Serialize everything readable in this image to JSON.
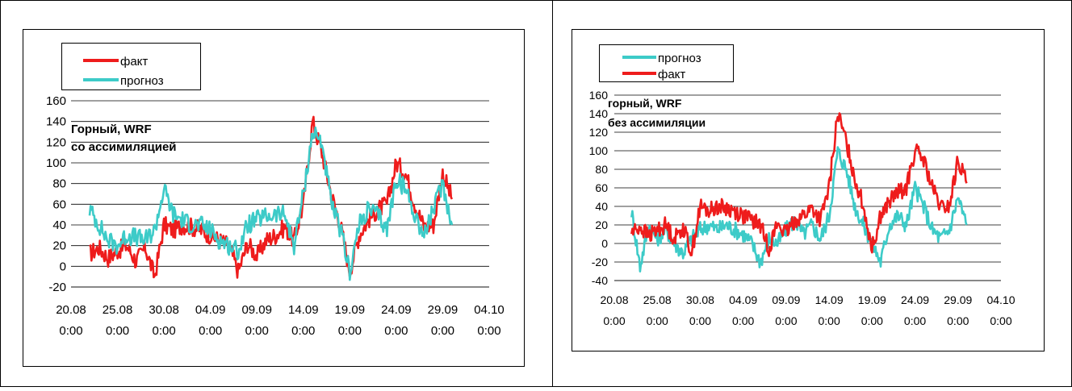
{
  "colors": {
    "fact": "#ee1c1c",
    "forecast": "#3dcbc8",
    "grid": "#000000",
    "frame": "#000000"
  },
  "chart_data": [
    {
      "type": "line",
      "title": "Горный, WRF",
      "subtitle": "со ассимиляцией",
      "legend_placement": "top-left",
      "ylim": [
        -20,
        160
      ],
      "yticks": [
        "-20",
        "0",
        "20",
        "40",
        "60",
        "80",
        "100",
        "120",
        "140",
        "160"
      ],
      "xticks": [
        {
          "date": "20.08",
          "time": "0:00"
        },
        {
          "date": "25.08",
          "time": "0:00"
        },
        {
          "date": "30.08",
          "time": "0:00"
        },
        {
          "date": "04.09",
          "time": "0:00"
        },
        {
          "date": "09.09",
          "time": "0:00"
        },
        {
          "date": "14.09",
          "time": "0:00"
        },
        {
          "date": "19.09",
          "time": "0:00"
        },
        {
          "date": "24.09",
          "time": "0:00"
        },
        {
          "date": "29.09",
          "time": "0:00"
        },
        {
          "date": "04.10",
          "time": "0:00"
        }
      ],
      "xlim": [
        "2021-08-20",
        "2021-10-04"
      ],
      "grid": "horizontal",
      "series": [
        {
          "name": "факт",
          "color": "#ee1c1c",
          "points": [
            [
              "2021-08-22",
              12
            ],
            [
              "2021-08-23",
              18
            ],
            [
              "2021-08-24",
              8
            ],
            [
              "2021-08-25",
              15
            ],
            [
              "2021-08-26",
              20
            ],
            [
              "2021-08-27",
              5
            ],
            [
              "2021-08-28",
              18
            ],
            [
              "2021-08-29",
              -10
            ],
            [
              "2021-08-30",
              40
            ],
            [
              "2021-08-31",
              35
            ],
            [
              "2021-09-01",
              40
            ],
            [
              "2021-09-02",
              38
            ],
            [
              "2021-09-03",
              35
            ],
            [
              "2021-09-04",
              30
            ],
            [
              "2021-09-05",
              25
            ],
            [
              "2021-09-06",
              20
            ],
            [
              "2021-09-07",
              -5
            ],
            [
              "2021-09-08",
              22
            ],
            [
              "2021-09-09",
              10
            ],
            [
              "2021-09-10",
              25
            ],
            [
              "2021-09-11",
              30
            ],
            [
              "2021-09-12",
              38
            ],
            [
              "2021-09-13",
              25
            ],
            [
              "2021-09-14",
              60
            ],
            [
              "2021-09-15",
              140
            ],
            [
              "2021-09-16",
              110
            ],
            [
              "2021-09-17",
              70
            ],
            [
              "2021-09-18",
              40
            ],
            [
              "2021-09-19",
              -5
            ],
            [
              "2021-09-20",
              30
            ],
            [
              "2021-09-21",
              45
            ],
            [
              "2021-09-22",
              55
            ],
            [
              "2021-09-23",
              60
            ],
            [
              "2021-09-24",
              100
            ],
            [
              "2021-09-25",
              90
            ],
            [
              "2021-09-26",
              60
            ],
            [
              "2021-09-27",
              38
            ],
            [
              "2021-09-28",
              40
            ],
            [
              "2021-09-29",
              90
            ],
            [
              "2021-09-30",
              65
            ]
          ]
        },
        {
          "name": "прогноз",
          "color": "#3dcbc8",
          "points": [
            [
              "2021-08-22",
              55
            ],
            [
              "2021-08-23",
              40
            ],
            [
              "2021-08-24",
              25
            ],
            [
              "2021-08-25",
              20
            ],
            [
              "2021-08-26",
              30
            ],
            [
              "2021-08-27",
              28
            ],
            [
              "2021-08-28",
              25
            ],
            [
              "2021-08-29",
              35
            ],
            [
              "2021-08-30",
              75
            ],
            [
              "2021-08-31",
              50
            ],
            [
              "2021-09-01",
              45
            ],
            [
              "2021-09-02",
              40
            ],
            [
              "2021-09-03",
              40
            ],
            [
              "2021-09-04",
              35
            ],
            [
              "2021-09-05",
              25
            ],
            [
              "2021-09-06",
              20
            ],
            [
              "2021-09-07",
              15
            ],
            [
              "2021-09-08",
              40
            ],
            [
              "2021-09-09",
              45
            ],
            [
              "2021-09-10",
              48
            ],
            [
              "2021-09-11",
              50
            ],
            [
              "2021-09-12",
              50
            ],
            [
              "2021-09-13",
              20
            ],
            [
              "2021-09-14",
              70
            ],
            [
              "2021-09-15",
              130
            ],
            [
              "2021-09-16",
              120
            ],
            [
              "2021-09-17",
              60
            ],
            [
              "2021-09-18",
              35
            ],
            [
              "2021-09-19",
              -5
            ],
            [
              "2021-09-20",
              40
            ],
            [
              "2021-09-21",
              55
            ],
            [
              "2021-09-22",
              50
            ],
            [
              "2021-09-23",
              35
            ],
            [
              "2021-09-24",
              85
            ],
            [
              "2021-09-25",
              75
            ],
            [
              "2021-09-26",
              50
            ],
            [
              "2021-09-27",
              30
            ],
            [
              "2021-09-28",
              55
            ],
            [
              "2021-09-29",
              80
            ],
            [
              "2021-09-30",
              40
            ]
          ]
        }
      ]
    },
    {
      "type": "line",
      "title": "горный, WRF",
      "subtitle": "без ассимиляции",
      "legend_placement": "top-left",
      "ylim": [
        -40,
        160
      ],
      "yticks": [
        "-40",
        "-20",
        "0",
        "20",
        "40",
        "60",
        "80",
        "100",
        "120",
        "140",
        "160"
      ],
      "xticks": [
        {
          "date": "20.08",
          "time": "0:00"
        },
        {
          "date": "25.08",
          "time": "0:00"
        },
        {
          "date": "30.08",
          "time": "0:00"
        },
        {
          "date": "04.09",
          "time": "0:00"
        },
        {
          "date": "09.09",
          "time": "0:00"
        },
        {
          "date": "14.09",
          "time": "0:00"
        },
        {
          "date": "19.09",
          "time": "0:00"
        },
        {
          "date": "24.09",
          "time": "0:00"
        },
        {
          "date": "29.09",
          "time": "0:00"
        },
        {
          "date": "04.10",
          "time": "0:00"
        }
      ],
      "xlim": [
        "2021-08-20",
        "2021-10-04"
      ],
      "grid": "horizontal",
      "series": [
        {
          "name": "прогноз",
          "color": "#3dcbc8",
          "points": [
            [
              "2021-08-22",
              35
            ],
            [
              "2021-08-23",
              -25
            ],
            [
              "2021-08-24",
              20
            ],
            [
              "2021-08-25",
              5
            ],
            [
              "2021-08-26",
              15
            ],
            [
              "2021-08-27",
              0
            ],
            [
              "2021-08-28",
              -10
            ],
            [
              "2021-08-29",
              5
            ],
            [
              "2021-08-30",
              15
            ],
            [
              "2021-08-31",
              20
            ],
            [
              "2021-09-01",
              15
            ],
            [
              "2021-09-02",
              20
            ],
            [
              "2021-09-03",
              15
            ],
            [
              "2021-09-04",
              10
            ],
            [
              "2021-09-05",
              0
            ],
            [
              "2021-09-06",
              -20
            ],
            [
              "2021-09-07",
              5
            ],
            [
              "2021-09-08",
              0
            ],
            [
              "2021-09-09",
              15
            ],
            [
              "2021-09-10",
              25
            ],
            [
              "2021-09-11",
              10
            ],
            [
              "2021-09-12",
              20
            ],
            [
              "2021-09-13",
              5
            ],
            [
              "2021-09-14",
              30
            ],
            [
              "2021-09-15",
              100
            ],
            [
              "2021-09-16",
              80
            ],
            [
              "2021-09-17",
              40
            ],
            [
              "2021-09-18",
              20
            ],
            [
              "2021-09-19",
              0
            ],
            [
              "2021-09-20",
              -20
            ],
            [
              "2021-09-21",
              20
            ],
            [
              "2021-09-22",
              30
            ],
            [
              "2021-09-23",
              20
            ],
            [
              "2021-09-24",
              60
            ],
            [
              "2021-09-25",
              40
            ],
            [
              "2021-09-26",
              15
            ],
            [
              "2021-09-27",
              5
            ],
            [
              "2021-09-28",
              15
            ],
            [
              "2021-09-29",
              50
            ],
            [
              "2021-09-30",
              20
            ]
          ]
        },
        {
          "name": "факт",
          "color": "#ee1c1c",
          "points": [
            [
              "2021-08-22",
              12
            ],
            [
              "2021-08-23",
              18
            ],
            [
              "2021-08-24",
              8
            ],
            [
              "2021-08-25",
              15
            ],
            [
              "2021-08-26",
              20
            ],
            [
              "2021-08-27",
              5
            ],
            [
              "2021-08-28",
              18
            ],
            [
              "2021-08-29",
              -10
            ],
            [
              "2021-08-30",
              40
            ],
            [
              "2021-08-31",
              35
            ],
            [
              "2021-09-01",
              40
            ],
            [
              "2021-09-02",
              38
            ],
            [
              "2021-09-03",
              35
            ],
            [
              "2021-09-04",
              30
            ],
            [
              "2021-09-05",
              25
            ],
            [
              "2021-09-06",
              20
            ],
            [
              "2021-09-07",
              -5
            ],
            [
              "2021-09-08",
              22
            ],
            [
              "2021-09-09",
              10
            ],
            [
              "2021-09-10",
              25
            ],
            [
              "2021-09-11",
              30
            ],
            [
              "2021-09-12",
              38
            ],
            [
              "2021-09-13",
              25
            ],
            [
              "2021-09-14",
              60
            ],
            [
              "2021-09-15",
              140
            ],
            [
              "2021-09-16",
              110
            ],
            [
              "2021-09-17",
              70
            ],
            [
              "2021-09-18",
              40
            ],
            [
              "2021-09-19",
              -5
            ],
            [
              "2021-09-20",
              30
            ],
            [
              "2021-09-21",
              45
            ],
            [
              "2021-09-22",
              55
            ],
            [
              "2021-09-23",
              60
            ],
            [
              "2021-09-24",
              100
            ],
            [
              "2021-09-25",
              90
            ],
            [
              "2021-09-26",
              60
            ],
            [
              "2021-09-27",
              38
            ],
            [
              "2021-09-28",
              40
            ],
            [
              "2021-09-29",
              90
            ],
            [
              "2021-09-30",
              65
            ]
          ]
        }
      ]
    }
  ]
}
